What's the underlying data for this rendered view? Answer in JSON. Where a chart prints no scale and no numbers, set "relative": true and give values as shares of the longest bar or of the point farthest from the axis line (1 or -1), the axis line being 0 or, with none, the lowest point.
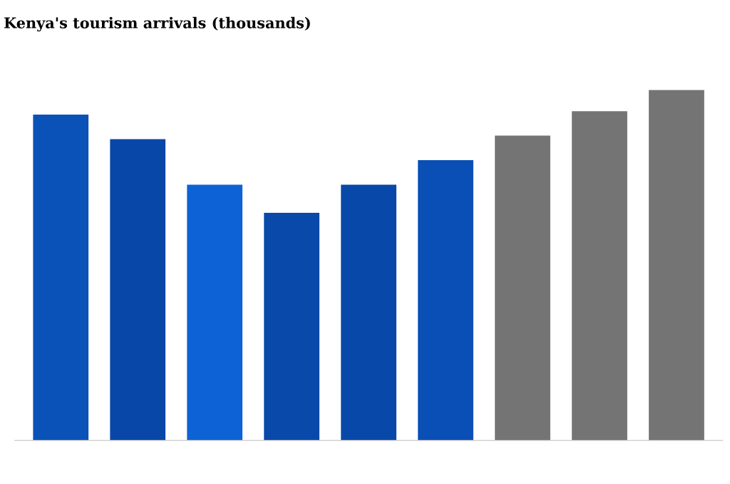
{
  "chart_data": {
    "type": "bar",
    "title": "Kenya's tourism arrivals (thousands)",
    "categories": [
      null,
      null,
      null,
      null,
      null,
      null,
      null,
      null,
      null
    ],
    "values": [
      0.93,
      0.86,
      0.73,
      0.65,
      0.73,
      0.8,
      0.87,
      0.94,
      1.0
    ],
    "colors": [
      "#0a52b8",
      "#0847a8",
      "#0d63d6",
      "#0849aa",
      "#0848a8",
      "#0a4fb5",
      "#747474",
      "#747474",
      "#747474"
    ],
    "relative": true,
    "grid": false
  }
}
